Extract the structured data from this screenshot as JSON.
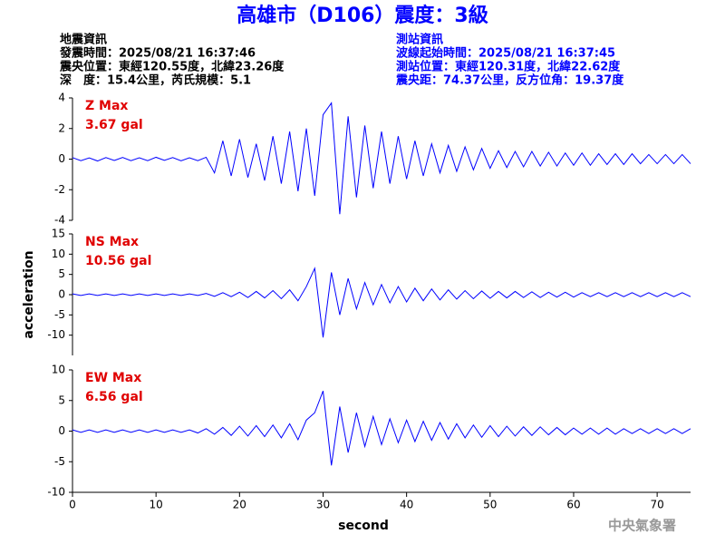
{
  "header": {
    "title": "高雄市（D106）震度：3級",
    "left": [
      "地震資訊",
      "發震時間：2025/08/21 16:37:46",
      "震央位置：東經120.55度，北緯23.26度",
      "深　度：15.4公里，芮氏規模：5.1"
    ],
    "right": [
      "測站資訊",
      "波線起始時間：2025/08/21 16:37:45",
      "測站位置：東經120.31度，北緯22.62度",
      "震央距：74.37公里，反方位角：19.37度"
    ]
  },
  "footer": "中央氣象署",
  "chart_data": [
    {
      "type": "line",
      "annotation": [
        "Z Max",
        "3.67 gal"
      ],
      "color": "#0000ff",
      "ylim": [
        -4,
        4
      ],
      "yticks": [
        -4,
        -2,
        0,
        2,
        4
      ],
      "xlim": [
        0,
        74
      ],
      "x": [
        0,
        1,
        2,
        3,
        4,
        5,
        6,
        7,
        8,
        9,
        10,
        11,
        12,
        13,
        14,
        15,
        16,
        17,
        18,
        19,
        20,
        21,
        22,
        23,
        24,
        25,
        26,
        27,
        28,
        29,
        30,
        31,
        32,
        33,
        34,
        35,
        36,
        37,
        38,
        39,
        40,
        41,
        42,
        43,
        44,
        45,
        46,
        47,
        48,
        49,
        50,
        51,
        52,
        53,
        54,
        55,
        56,
        57,
        58,
        59,
        60,
        61,
        62,
        63,
        64,
        65,
        66,
        67,
        68,
        69,
        70,
        71,
        72,
        73,
        74
      ],
      "values": [
        0.1,
        -0.1,
        0.08,
        -0.12,
        0.1,
        -0.09,
        0.11,
        -0.1,
        0.09,
        -0.1,
        0.12,
        -0.08,
        0.1,
        -0.11,
        0.09,
        -0.1,
        0.12,
        -0.9,
        1.2,
        -1.1,
        1.3,
        -1.2,
        1.0,
        -1.4,
        1.5,
        -1.6,
        1.8,
        -2.1,
        2.0,
        -2.4,
        2.9,
        3.67,
        -3.6,
        2.8,
        -2.5,
        2.2,
        -1.9,
        1.8,
        -1.6,
        1.5,
        -1.3,
        1.2,
        -1.1,
        1.0,
        -0.9,
        0.9,
        -0.8,
        0.8,
        -0.7,
        0.7,
        -0.6,
        0.55,
        -0.55,
        0.5,
        -0.5,
        0.5,
        -0.45,
        0.45,
        -0.45,
        0.4,
        -0.4,
        0.4,
        -0.4,
        0.35,
        -0.35,
        0.35,
        -0.35,
        0.35,
        -0.3,
        0.3,
        -0.3,
        0.3,
        -0.3,
        0.3,
        -0.3
      ]
    },
    {
      "type": "line",
      "annotation": [
        "NS Max",
        "10.56 gal"
      ],
      "color": "#0000ff",
      "ylabel": "acceleration",
      "ylim": [
        -15,
        15
      ],
      "yticks": [
        -10,
        -5,
        0,
        5,
        10,
        15
      ],
      "xlim": [
        0,
        74
      ],
      "x": [
        0,
        1,
        2,
        3,
        4,
        5,
        6,
        7,
        8,
        9,
        10,
        11,
        12,
        13,
        14,
        15,
        16,
        17,
        18,
        19,
        20,
        21,
        22,
        23,
        24,
        25,
        26,
        27,
        28,
        29,
        30,
        31,
        32,
        33,
        34,
        35,
        36,
        37,
        38,
        39,
        40,
        41,
        42,
        43,
        44,
        45,
        46,
        47,
        48,
        49,
        50,
        51,
        52,
        53,
        54,
        55,
        56,
        57,
        58,
        59,
        60,
        61,
        62,
        63,
        64,
        65,
        66,
        67,
        68,
        69,
        70,
        71,
        72,
        73,
        74
      ],
      "values": [
        0.2,
        -0.2,
        0.2,
        -0.2,
        0.2,
        -0.2,
        0.2,
        -0.2,
        0.2,
        -0.2,
        0.2,
        -0.2,
        0.2,
        -0.2,
        0.2,
        -0.2,
        0.3,
        -0.4,
        0.5,
        -0.5,
        0.6,
        -0.7,
        0.8,
        -0.8,
        1.0,
        -1.0,
        1.2,
        -1.5,
        2.0,
        6.5,
        -10.56,
        5.5,
        -5.0,
        4.0,
        -3.5,
        3.0,
        -2.5,
        2.5,
        -2.0,
        2.0,
        -1.8,
        1.6,
        -1.5,
        1.4,
        -1.3,
        1.2,
        -1.1,
        1.0,
        -1.0,
        0.9,
        -0.9,
        0.8,
        -0.8,
        0.8,
        -0.7,
        0.7,
        -0.7,
        0.6,
        -0.6,
        0.6,
        -0.6,
        0.5,
        -0.5,
        0.5,
        -0.5,
        0.5,
        -0.5,
        0.5,
        -0.5,
        0.5,
        -0.5,
        0.5,
        -0.5,
        0.5,
        -0.5
      ]
    },
    {
      "type": "line",
      "annotation": [
        "EW Max",
        "6.56 gal"
      ],
      "color": "#0000ff",
      "xlabel": "second",
      "ylim": [
        -10,
        10
      ],
      "yticks": [
        -10,
        -5,
        0,
        5,
        10
      ],
      "xlim": [
        0,
        74
      ],
      "xticks": [
        0,
        10,
        20,
        30,
        40,
        50,
        60,
        70
      ],
      "x": [
        0,
        1,
        2,
        3,
        4,
        5,
        6,
        7,
        8,
        9,
        10,
        11,
        12,
        13,
        14,
        15,
        16,
        17,
        18,
        19,
        20,
        21,
        22,
        23,
        24,
        25,
        26,
        27,
        28,
        29,
        30,
        31,
        32,
        33,
        34,
        35,
        36,
        37,
        38,
        39,
        40,
        41,
        42,
        43,
        44,
        45,
        46,
        47,
        48,
        49,
        50,
        51,
        52,
        53,
        54,
        55,
        56,
        57,
        58,
        59,
        60,
        61,
        62,
        63,
        64,
        65,
        66,
        67,
        68,
        69,
        70,
        71,
        72,
        73,
        74
      ],
      "values": [
        0.2,
        -0.2,
        0.2,
        -0.2,
        0.2,
        -0.2,
        0.2,
        -0.2,
        0.2,
        -0.2,
        0.2,
        -0.2,
        0.2,
        -0.2,
        0.2,
        -0.3,
        0.4,
        -0.5,
        0.6,
        -0.7,
        0.8,
        -0.8,
        0.9,
        -0.9,
        1.0,
        -1.1,
        1.2,
        -1.4,
        1.8,
        3.0,
        6.56,
        -5.6,
        4.0,
        -3.5,
        3.0,
        -2.5,
        2.4,
        -2.2,
        2.0,
        -1.9,
        1.8,
        -1.7,
        1.6,
        -1.5,
        1.4,
        -1.3,
        1.2,
        -1.1,
        1.0,
        -1.0,
        0.9,
        -0.9,
        0.8,
        -0.8,
        0.7,
        -0.7,
        0.7,
        -0.6,
        0.6,
        -0.6,
        0.5,
        -0.5,
        0.5,
        -0.5,
        0.5,
        -0.5,
        0.4,
        -0.4,
        0.4,
        -0.4,
        0.4,
        -0.4,
        0.4,
        -0.4,
        0.4
      ]
    }
  ]
}
